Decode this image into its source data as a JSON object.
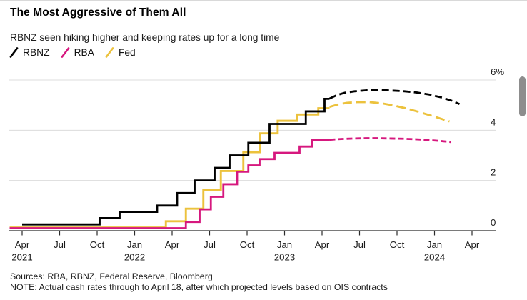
{
  "header": {
    "title": "The Most Aggressive of Them All",
    "subtitle": "RBNZ seen hiking higher and keeping rates up for a long time"
  },
  "legend": [
    {
      "label": "RBNZ",
      "color": "#000000"
    },
    {
      "label": "RBA",
      "color": "#d6187e"
    },
    {
      "label": "Fed",
      "color": "#ecc23d"
    }
  ],
  "footer": {
    "sources": "Sources: RBA, RBNZ, Federal Reserve, Bloomberg",
    "note": "NOTE: Actual cash rates through to April 18, after which projected levels based on OIS contracts"
  },
  "colors": {
    "grid": "#dcdcdc",
    "axis": "#2a2a2a",
    "label": "#1a1a1a"
  },
  "chart_data": {
    "type": "line",
    "title": "The Most Aggressive of Them All",
    "subtitle": "RBNZ seen hiking higher and keeping rates up for a long time",
    "unit": "percent",
    "grid": "horizontal",
    "legend_position": "top-left",
    "y_axis": {
      "range": [
        0,
        6.5
      ],
      "ticks": [
        {
          "v": 6,
          "label": "6%"
        },
        {
          "v": 4,
          "label": "4"
        },
        {
          "v": 2,
          "label": "2"
        },
        {
          "v": 0,
          "label": "0"
        }
      ]
    },
    "x_axis": {
      "unit": "months_since_apr_2021",
      "ticks": [
        {
          "m": 0,
          "label": "Apr",
          "year": "2021"
        },
        {
          "m": 3,
          "label": "Jul"
        },
        {
          "m": 6,
          "label": "Oct"
        },
        {
          "m": 9,
          "label": "Jan",
          "year": "2022"
        },
        {
          "m": 12,
          "label": "Apr"
        },
        {
          "m": 15,
          "label": "Jul"
        },
        {
          "m": 18,
          "label": "Oct"
        },
        {
          "m": 21,
          "label": "Jan",
          "year": "2023"
        },
        {
          "m": 24,
          "label": "Apr"
        },
        {
          "m": 27,
          "label": "Jul"
        },
        {
          "m": 30,
          "label": "Oct"
        },
        {
          "m": 33,
          "label": "Jan",
          "year": "2024"
        },
        {
          "m": 36,
          "label": "Apr"
        }
      ]
    },
    "actual_until_m": 24.6,
    "series": [
      {
        "name": "RBNZ",
        "color": "#000000",
        "width": 2.8,
        "dash": "10 5",
        "steps": [
          [
            0,
            0.25
          ],
          [
            6.2,
            0.5
          ],
          [
            7.8,
            0.75
          ],
          [
            10.8,
            1.0
          ],
          [
            12.4,
            1.5
          ],
          [
            13.8,
            2.0
          ],
          [
            15.4,
            2.5
          ],
          [
            16.6,
            3.0
          ],
          [
            18.1,
            3.5
          ],
          [
            19.8,
            4.25
          ],
          [
            22.7,
            4.75
          ],
          [
            24.2,
            5.25
          ]
        ],
        "solid_until": 24.6,
        "projection": [
          [
            24.6,
            5.26
          ],
          [
            25.2,
            5.4
          ],
          [
            25.8,
            5.49
          ],
          [
            26.6,
            5.55
          ],
          [
            27.6,
            5.59
          ],
          [
            28.6,
            5.6
          ],
          [
            29.6,
            5.58
          ],
          [
            30.6,
            5.55
          ],
          [
            31.6,
            5.5
          ],
          [
            32.6,
            5.42
          ],
          [
            33.6,
            5.3
          ],
          [
            34.4,
            5.17
          ],
          [
            35.0,
            5.04
          ]
        ]
      },
      {
        "name": "RBA",
        "color": "#d6187e",
        "width": 2.8,
        "dash": "8 4",
        "steps": [
          [
            -1,
            0.1
          ],
          [
            13.1,
            0.35
          ],
          [
            14.2,
            0.85
          ],
          [
            15.1,
            1.35
          ],
          [
            16.1,
            1.85
          ],
          [
            17.2,
            2.35
          ],
          [
            18.1,
            2.6
          ],
          [
            19.0,
            2.85
          ],
          [
            20.2,
            3.1
          ],
          [
            22.2,
            3.35
          ],
          [
            23.2,
            3.6
          ]
        ],
        "solid_until": 24.6,
        "projection": [
          [
            24.6,
            3.62
          ],
          [
            25.5,
            3.65
          ],
          [
            26.5,
            3.67
          ],
          [
            27.5,
            3.68
          ],
          [
            28.5,
            3.68
          ],
          [
            29.5,
            3.67
          ],
          [
            30.5,
            3.66
          ],
          [
            31.5,
            3.64
          ],
          [
            32.5,
            3.61
          ],
          [
            33.5,
            3.57
          ],
          [
            34.3,
            3.53
          ]
        ]
      },
      {
        "name": "Fed",
        "color": "#ecc23d",
        "width": 2.9,
        "dash": "13 6",
        "steps": [
          [
            -1,
            0.125
          ],
          [
            11.5,
            0.375
          ],
          [
            13.1,
            0.875
          ],
          [
            14.5,
            1.625
          ],
          [
            15.9,
            2.375
          ],
          [
            17.7,
            3.125
          ],
          [
            19.05,
            3.875
          ],
          [
            20.45,
            4.375
          ],
          [
            22.0,
            4.625
          ],
          [
            23.7,
            4.875
          ]
        ],
        "solid_until": 24.6,
        "projection": [
          [
            24.6,
            4.93
          ],
          [
            25.3,
            5.03
          ],
          [
            26.0,
            5.09
          ],
          [
            26.8,
            5.12
          ],
          [
            27.8,
            5.12
          ],
          [
            28.8,
            5.07
          ],
          [
            29.8,
            4.98
          ],
          [
            30.8,
            4.86
          ],
          [
            31.8,
            4.72
          ],
          [
            32.8,
            4.57
          ],
          [
            33.5,
            4.46
          ],
          [
            34.2,
            4.35
          ]
        ]
      }
    ]
  }
}
